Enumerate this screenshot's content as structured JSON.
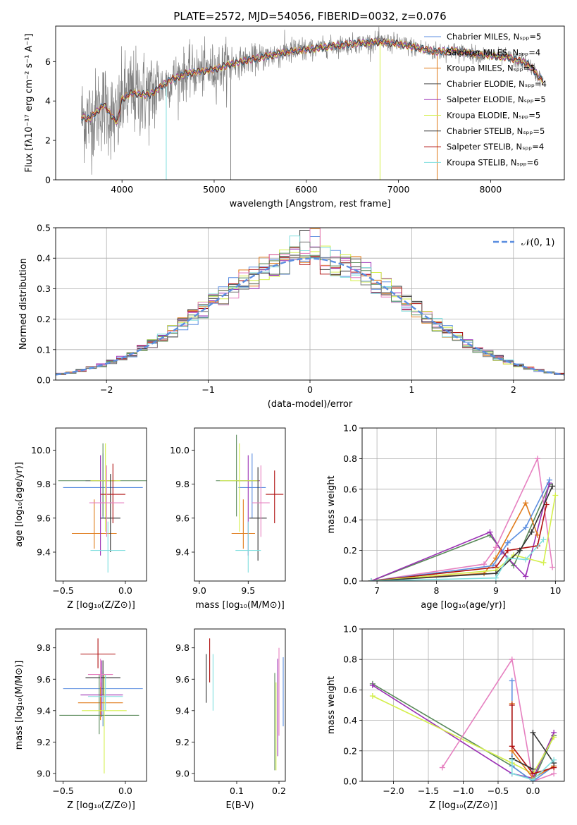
{
  "title": "PLATE=2572, MJD=54056, FIBERID=0032, z=0.076",
  "colors": {
    "c_miles": "#5b8ee0",
    "s_miles": "#7a7a7a",
    "k_miles": "#e07b1a",
    "c_elodie": "#4a4a4a",
    "s_elodie": "#9b30b5",
    "k_elodie": "#d4ef4b",
    "c_stelib": "#333333",
    "s_stelib": "#b01010",
    "k_stelib": "#7fdede",
    "extra_pink": "#e680c0",
    "extra_green": "#5a8a5a",
    "data_gray": "#808080"
  },
  "chart_data": [
    {
      "id": "spectrum",
      "type": "line",
      "xlabel": "wavelength [Angstrom, rest frame]",
      "ylabel": "Flux [fλ10⁻¹⁷ erg cm⁻² s⁻¹ A⁻¹]",
      "xlim": [
        3280,
        8800
      ],
      "ylim": [
        0,
        7.8
      ],
      "xticks": [
        4000,
        5000,
        6000,
        7000,
        8000
      ],
      "yticks": [
        0,
        2,
        4,
        6
      ],
      "legend_position": "top-right",
      "legend": [
        {
          "label": "Chabrier MILES, Nₛₚₚ=5",
          "color_key": "c_miles"
        },
        {
          "label": "Salpeter MILES, Nₛₚₚ=4",
          "color_key": "s_miles"
        },
        {
          "label": "Kroupa MILES, Nₛₚₚ=5",
          "color_key": "k_miles"
        },
        {
          "label": "Chabrier ELODIE, Nₛₚₚ=4",
          "color_key": "c_elodie"
        },
        {
          "label": "Salpeter ELODIE, Nₛₚₚ=5",
          "color_key": "s_elodie"
        },
        {
          "label": "Kroupa ELODIE, Nₛₚₚ=5",
          "color_key": "k_elodie"
        },
        {
          "label": "Chabrier STELIB, Nₛₚₚ=5",
          "color_key": "c_stelib"
        },
        {
          "label": "Salpeter STELIB, Nₛₚₚ=4",
          "color_key": "s_stelib"
        },
        {
          "label": "Kroupa STELIB, Nₛₚₚ=6",
          "color_key": "k_stelib"
        }
      ],
      "continuum": [
        [
          3560,
          3.2
        ],
        [
          3650,
          3.1
        ],
        [
          3800,
          3.8
        ],
        [
          3900,
          3.2
        ],
        [
          3950,
          2.9
        ],
        [
          4000,
          4.1
        ],
        [
          4100,
          4.4
        ],
        [
          4300,
          4.3
        ],
        [
          4500,
          5.0
        ],
        [
          4700,
          5.4
        ],
        [
          5000,
          5.6
        ],
        [
          5200,
          5.9
        ],
        [
          5500,
          6.2
        ],
        [
          5800,
          6.5
        ],
        [
          6000,
          6.6
        ],
        [
          6300,
          6.8
        ],
        [
          6500,
          6.9
        ],
        [
          6800,
          7.0
        ],
        [
          7000,
          6.9
        ],
        [
          7200,
          6.7
        ],
        [
          7400,
          6.5
        ],
        [
          7600,
          6.55
        ],
        [
          7800,
          6.4
        ],
        [
          8000,
          6.3
        ],
        [
          8200,
          6.2
        ],
        [
          8400,
          5.9
        ],
        [
          8570,
          5.0
        ]
      ],
      "data_start": 3560,
      "data_end": 8570,
      "dropouts": [
        4480,
        5180,
        6800,
        7420
      ]
    },
    {
      "id": "residuals",
      "type": "line",
      "xlabel": "(data-model)/error",
      "ylabel": "Normed distribution",
      "xlim": [
        -2.5,
        2.5
      ],
      "ylim": [
        0,
        0.5
      ],
      "xticks": [
        -2,
        -1,
        0,
        1,
        2
      ],
      "yticks": [
        0.0,
        0.1,
        0.2,
        0.3,
        0.4,
        0.5
      ],
      "legend": [
        {
          "label": "𝒩(0, 1)",
          "color": "#5b8ee0",
          "style": "dashed"
        }
      ],
      "legend_position": "top-right",
      "bin_width": 0.1
    },
    {
      "id": "age_vs_z",
      "type": "scatter",
      "xlabel": "Z [log₁₀(Z/Z⊙)]",
      "ylabel": "age  [log₁₀(age/yr)]",
      "xlim": [
        -0.56,
        0.17
      ],
      "ylim": [
        9.23,
        10.13
      ],
      "xticks": [
        -0.5,
        0.0
      ],
      "yticks": [
        9.4,
        9.6,
        9.8,
        10.0
      ],
      "points": [
        {
          "x": -0.18,
          "y": 9.78,
          "xerr": 0.32,
          "yerr": [
            0.18,
            0.2
          ],
          "color_key": "c_miles"
        },
        {
          "x": -0.25,
          "y": 9.51,
          "xerr": 0.18,
          "yerr": [
            0.09,
            0.2
          ],
          "color_key": "k_miles"
        },
        {
          "x": -0.2,
          "y": 9.82,
          "xerr": 0.12,
          "yerr": [
            0.44,
            0.15
          ],
          "color_key": "s_elodie"
        },
        {
          "x": -0.18,
          "y": 9.82,
          "xerr": 0.36,
          "yerr": [
            0.21,
            0.22
          ],
          "color_key": "extra_green"
        },
        {
          "x": -0.16,
          "y": 9.82,
          "xerr": 0.12,
          "yerr": [
            0.3,
            0.22
          ],
          "color_key": "k_elodie"
        },
        {
          "x": -0.12,
          "y": 9.6,
          "xerr": 0.08,
          "yerr": [
            0.2,
            0.26
          ],
          "color_key": "c_stelib"
        },
        {
          "x": -0.1,
          "y": 9.74,
          "xerr": 0.1,
          "yerr": [
            0.17,
            0.18
          ],
          "color_key": "s_stelib"
        },
        {
          "x": -0.15,
          "y": 9.69,
          "xerr": 0.14,
          "yerr": [
            0.2,
            0.22
          ],
          "color_key": "extra_pink"
        },
        {
          "x": -0.14,
          "y": 9.41,
          "xerr": 0.14,
          "yerr": [
            0.13,
            0.17
          ],
          "color_key": "k_stelib"
        }
      ]
    },
    {
      "id": "age_vs_mass",
      "type": "scatter",
      "xlabel": "mass [log₁₀(M/M⊙)]",
      "ylabel": "",
      "xlim": [
        8.95,
        9.88
      ],
      "ylim": [
        9.23,
        10.13
      ],
      "xticks": [
        9.0,
        9.5
      ],
      "yticks": [
        9.4,
        9.6,
        9.8,
        10.0
      ],
      "points": [
        {
          "x": 9.54,
          "y": 9.78,
          "xerr": 0.14,
          "yerr": [
            0.18,
            0.2
          ],
          "color_key": "c_miles"
        },
        {
          "x": 9.45,
          "y": 9.51,
          "xerr": 0.12,
          "yerr": [
            0.09,
            0.2
          ],
          "color_key": "k_miles"
        },
        {
          "x": 9.5,
          "y": 9.82,
          "xerr": 0.12,
          "yerr": [
            0.44,
            0.15
          ],
          "color_key": "s_elodie"
        },
        {
          "x": 9.38,
          "y": 9.82,
          "xerr": 0.21,
          "yerr": [
            0.21,
            0.27
          ],
          "color_key": "extra_green"
        },
        {
          "x": 9.41,
          "y": 9.82,
          "xerr": 0.2,
          "yerr": [
            0.3,
            0.22
          ],
          "color_key": "k_elodie"
        },
        {
          "x": 9.6,
          "y": 9.6,
          "xerr": 0.09,
          "yerr": [
            0.25,
            0.3
          ],
          "color_key": "c_stelib"
        },
        {
          "x": 9.77,
          "y": 9.74,
          "xerr": 0.09,
          "yerr": [
            0.17,
            0.14
          ],
          "color_key": "s_stelib"
        },
        {
          "x": 9.63,
          "y": 9.69,
          "xerr": 0.09,
          "yerr": [
            0.2,
            0.22
          ],
          "color_key": "extra_pink"
        },
        {
          "x": 9.5,
          "y": 9.41,
          "xerr": 0.13,
          "yerr": [
            0.13,
            0.17
          ],
          "color_key": "k_stelib"
        }
      ]
    },
    {
      "id": "weight_vs_age",
      "type": "line",
      "xlabel": "age  [log₁₀(age/yr)]",
      "ylabel": "mass weight",
      "xlim": [
        6.75,
        10.15
      ],
      "ylim": [
        0,
        1.0
      ],
      "xticks": [
        7,
        8,
        9,
        10
      ],
      "yticks": [
        0.0,
        0.2,
        0.4,
        0.6,
        0.8,
        1.0
      ],
      "series": [
        {
          "color_key": "extra_green",
          "x": [
            6.9,
            8.9,
            9.3,
            9.9
          ],
          "y": [
            0.0,
            0.3,
            0.1,
            0.63
          ]
        },
        {
          "color_key": "s_elodie",
          "x": [
            6.9,
            8.9,
            9.1,
            9.5,
            9.9
          ],
          "y": [
            0.0,
            0.32,
            0.19,
            0.03,
            0.64
          ]
        },
        {
          "color_key": "k_miles",
          "x": [
            6.9,
            8.8,
            9.0,
            9.5,
            9.7
          ],
          "y": [
            0.0,
            0.05,
            0.15,
            0.51,
            0.3
          ]
        },
        {
          "color_key": "extra_pink",
          "x": [
            6.9,
            8.8,
            9.0,
            9.7,
            9.95
          ],
          "y": [
            0.0,
            0.11,
            0.22,
            0.8,
            0.09
          ]
        },
        {
          "color_key": "c_miles",
          "x": [
            6.9,
            8.95,
            9.2,
            9.5,
            9.9
          ],
          "y": [
            0.0,
            0.1,
            0.25,
            0.35,
            0.66
          ]
        },
        {
          "color_key": "s_stelib",
          "x": [
            6.9,
            9.0,
            9.2,
            9.7,
            9.85
          ],
          "y": [
            0.0,
            0.09,
            0.2,
            0.23,
            0.5
          ]
        },
        {
          "color_key": "k_elodie",
          "x": [
            6.9,
            9.0,
            9.3,
            9.8,
            10.0
          ],
          "y": [
            0.0,
            0.07,
            0.17,
            0.12,
            0.56
          ]
        },
        {
          "color_key": "c_stelib",
          "x": [
            6.9,
            9.0,
            9.4,
            9.6,
            9.95
          ],
          "y": [
            0.0,
            0.05,
            0.2,
            0.32,
            0.62
          ]
        },
        {
          "color_key": "k_stelib",
          "x": [
            6.9,
            9.0,
            9.2,
            9.5,
            9.8
          ],
          "y": [
            0.0,
            0.02,
            0.15,
            0.14,
            0.27
          ]
        }
      ]
    },
    {
      "id": "mass_vs_z",
      "type": "scatter",
      "xlabel": "Z [log₁₀(Z/Z⊙)]",
      "ylabel": "mass [log₁₀(M/M⊙)]",
      "xlim": [
        -0.56,
        0.17
      ],
      "ylim": [
        8.95,
        9.92
      ],
      "xticks": [
        -0.5,
        0.0
      ],
      "yticks": [
        9.0,
        9.2,
        9.4,
        9.6,
        9.8
      ],
      "points": [
        {
          "x": -0.18,
          "y": 9.54,
          "xerr": 0.32,
          "yerr": [
            0.24,
            0.11
          ],
          "color_key": "c_miles"
        },
        {
          "x": -0.2,
          "y": 9.45,
          "xerr": 0.18,
          "yerr": [
            0.11,
            0.13
          ],
          "color_key": "k_miles"
        },
        {
          "x": -0.19,
          "y": 9.5,
          "xerr": 0.17,
          "yerr": [
            0.14,
            0.22
          ],
          "color_key": "s_elodie"
        },
        {
          "x": -0.21,
          "y": 9.37,
          "xerr": 0.32,
          "yerr": [
            0.12,
            0.26
          ],
          "color_key": "extra_green"
        },
        {
          "x": -0.17,
          "y": 9.4,
          "xerr": 0.18,
          "yerr": [
            0.4,
            0.23
          ],
          "color_key": "k_elodie"
        },
        {
          "x": -0.18,
          "y": 9.61,
          "xerr": 0.14,
          "yerr": [
            0.11,
            0.11
          ],
          "color_key": "c_stelib"
        },
        {
          "x": -0.22,
          "y": 9.76,
          "xerr": 0.14,
          "yerr": [
            0.09,
            0.1
          ],
          "color_key": "s_stelib"
        },
        {
          "x": -0.2,
          "y": 9.63,
          "xerr": 0.1,
          "yerr": [
            0.08,
            0.1
          ],
          "color_key": "extra_pink"
        },
        {
          "x": -0.16,
          "y": 9.49,
          "xerr": 0.14,
          "yerr": [
            0.09,
            0.14
          ],
          "color_key": "k_stelib"
        }
      ]
    },
    {
      "id": "mass_vs_ebv",
      "type": "scatter",
      "xlabel": "E(B-V)",
      "ylabel": "",
      "xlim": [
        0.0,
        0.215
      ],
      "ylim": [
        8.95,
        9.92
      ],
      "xticks": [
        0.1,
        0.2
      ],
      "yticks": [
        9.0,
        9.2,
        9.4,
        9.6,
        9.8
      ],
      "points": [
        {
          "x": 0.028,
          "y": 9.6,
          "yerr": [
            0.15,
            0.16
          ],
          "color_key": "c_stelib"
        },
        {
          "x": 0.036,
          "y": 9.72,
          "yerr": [
            0.14,
            0.14
          ],
          "color_key": "s_stelib"
        },
        {
          "x": 0.044,
          "y": 9.58,
          "yerr": [
            0.18,
            0.18
          ],
          "color_key": "k_stelib"
        },
        {
          "x": 0.19,
          "y": 9.33,
          "yerr": [
            0.31,
            0.31
          ],
          "color_key": "extra_green"
        },
        {
          "x": 0.193,
          "y": 9.3,
          "yerr": [
            0.28,
            0.28
          ],
          "color_key": "k_elodie"
        },
        {
          "x": 0.197,
          "y": 9.42,
          "yerr": [
            0.31,
            0.31
          ],
          "color_key": "s_elodie"
        },
        {
          "x": 0.2,
          "y": 9.52,
          "yerr": [
            0.28,
            0.28
          ],
          "color_key": "extra_pink"
        },
        {
          "x": 0.21,
          "y": 9.52,
          "yerr": [
            0.22,
            0.22
          ],
          "color_key": "c_miles"
        }
      ]
    },
    {
      "id": "weight_vs_z",
      "type": "line",
      "xlabel": "Z [log₁₀(Z/Z⊙)]",
      "ylabel": "mass weight",
      "xlim": [
        -2.45,
        0.45
      ],
      "ylim": [
        0,
        1.0
      ],
      "xticks": [
        -2.0,
        -1.5,
        -1.0,
        -0.5,
        0.0
      ],
      "yticks": [
        0.0,
        0.2,
        0.4,
        0.6,
        0.8,
        1.0
      ],
      "series": [
        {
          "color_key": "extra_green",
          "x": [
            -2.3,
            -0.3,
            0.0,
            0.3
          ],
          "y": [
            0.64,
            0.1,
            0.0,
            0.3
          ]
        },
        {
          "color_key": "s_elodie",
          "x": [
            -2.3,
            -0.3,
            0.0,
            0.3
          ],
          "y": [
            0.63,
            0.05,
            0.02,
            0.32
          ]
        },
        {
          "color_key": "k_elodie",
          "x": [
            -2.3,
            -0.3,
            0.0,
            0.3
          ],
          "y": [
            0.56,
            0.12,
            0.05,
            0.29
          ]
        },
        {
          "color_key": "extra_pink",
          "x": [
            -1.3,
            -0.3,
            0.0,
            0.3
          ],
          "y": [
            0.09,
            0.8,
            0.0,
            0.05
          ]
        },
        {
          "color_key": "c_miles",
          "x": [
            -0.3,
            -0.3,
            0.0,
            0.3
          ],
          "y": [
            0.66,
            0.1,
            0.0,
            0.1
          ]
        },
        {
          "color_key": "k_miles",
          "x": [
            -0.3,
            -0.3,
            0.0,
            0.3
          ],
          "y": [
            0.51,
            0.2,
            0.02,
            0.1
          ]
        },
        {
          "color_key": "s_stelib",
          "x": [
            -0.3,
            -0.3,
            0.0,
            0.3
          ],
          "y": [
            0.5,
            0.23,
            0.05,
            0.09
          ]
        },
        {
          "color_key": "c_stelib",
          "x": [
            -0.3,
            0.0,
            0.0,
            0.3
          ],
          "y": [
            0.15,
            0.08,
            0.32,
            0.12
          ]
        },
        {
          "color_key": "k_stelib",
          "x": [
            -0.3,
            -0.3,
            0.0,
            0.3
          ],
          "y": [
            0.14,
            0.05,
            0.01,
            0.14
          ]
        }
      ]
    }
  ]
}
